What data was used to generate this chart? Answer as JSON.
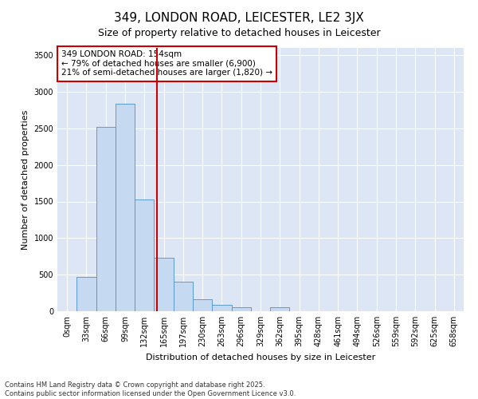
{
  "title": "349, LONDON ROAD, LEICESTER, LE2 3JX",
  "subtitle": "Size of property relative to detached houses in Leicester",
  "xlabel": "Distribution of detached houses by size in Leicester",
  "ylabel": "Number of detached properties",
  "categories": [
    "0sqm",
    "33sqm",
    "66sqm",
    "99sqm",
    "132sqm",
    "165sqm",
    "197sqm",
    "230sqm",
    "263sqm",
    "296sqm",
    "329sqm",
    "362sqm",
    "395sqm",
    "428sqm",
    "461sqm",
    "494sqm",
    "526sqm",
    "559sqm",
    "592sqm",
    "625sqm",
    "658sqm"
  ],
  "values": [
    0,
    470,
    2520,
    2840,
    1530,
    730,
    400,
    160,
    90,
    55,
    0,
    55,
    0,
    0,
    0,
    0,
    0,
    0,
    0,
    0,
    0
  ],
  "bar_color": "#c5d9f1",
  "bar_edge_color": "#5b9bd5",
  "highlight_color": "#cc0000",
  "annotation_text": "349 LONDON ROAD: 154sqm\n← 79% of detached houses are smaller (6,900)\n21% of semi-detached houses are larger (1,820) →",
  "annotation_box_color": "#cc0000",
  "ylim": [
    0,
    3600
  ],
  "yticks": [
    0,
    500,
    1000,
    1500,
    2000,
    2500,
    3000,
    3500
  ],
  "plot_bg_color": "#dce6f5",
  "figure_bg_color": "#ffffff",
  "grid_color": "#ffffff",
  "footer_line1": "Contains HM Land Registry data © Crown copyright and database right 2025.",
  "footer_line2": "Contains public sector information licensed under the Open Government Licence v3.0.",
  "title_fontsize": 11,
  "subtitle_fontsize": 9,
  "axis_label_fontsize": 8,
  "tick_fontsize": 7,
  "ylabel_fontsize": 8
}
